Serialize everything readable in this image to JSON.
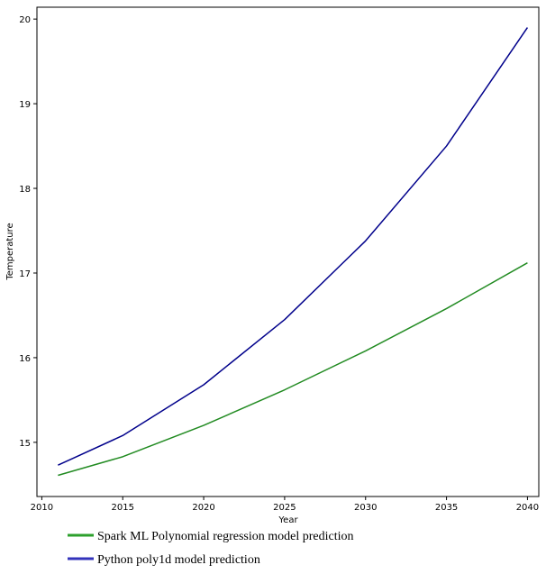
{
  "chart_data": {
    "type": "line",
    "xlabel": "Year",
    "ylabel": "Temperature",
    "xlim": [
      2009.7,
      2040.7
    ],
    "ylim": [
      14.36,
      20.14
    ],
    "xticks": [
      2010,
      2015,
      2020,
      2025,
      2030,
      2035,
      2040
    ],
    "yticks": [
      15,
      16,
      17,
      18,
      19,
      20
    ],
    "grid": false,
    "legend_position": "bottom-left, below plot",
    "series": [
      {
        "name": "Spark ML Polynomial regression model prediction",
        "color": "#228B22",
        "x": [
          2011,
          2015,
          2020,
          2025,
          2030,
          2035,
          2040
        ],
        "y": [
          14.61,
          14.83,
          15.2,
          15.62,
          16.08,
          16.58,
          17.12
        ]
      },
      {
        "name": "Python poly1d model prediction",
        "color": "#00008B",
        "x": [
          2011,
          2015,
          2020,
          2025,
          2030,
          2035,
          2040
        ],
        "y": [
          14.73,
          15.08,
          15.68,
          16.45,
          17.38,
          18.5,
          19.9
        ]
      }
    ],
    "legend_colors": [
      "#2ca02c",
      "#3333bb"
    ]
  }
}
